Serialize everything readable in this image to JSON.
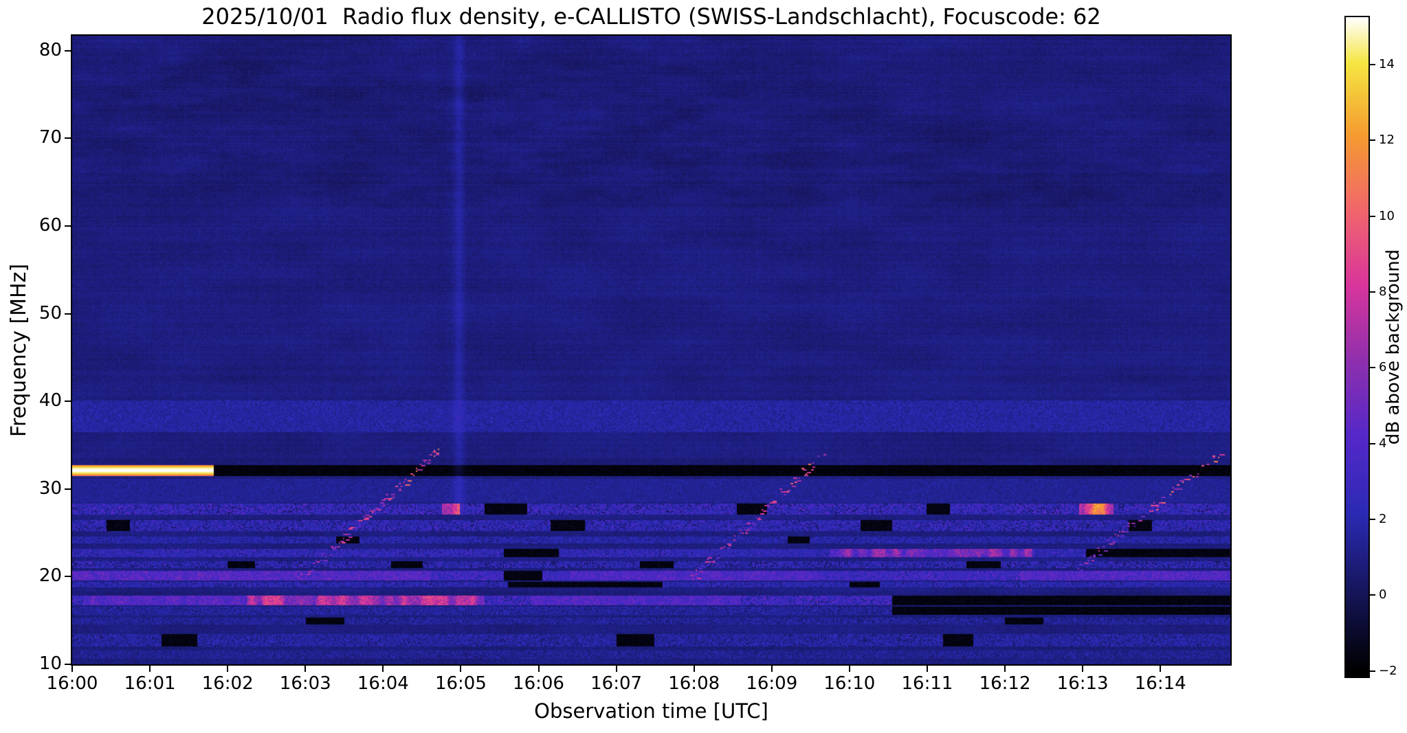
{
  "chart_data": {
    "type": "heatmap",
    "title": "2025/10/01  Radio flux density, e-CALLISTO (SWISS-Landschlacht), Focuscode: 62",
    "xlabel": "Observation time [UTC]",
    "ylabel": "Frequency [MHz]",
    "colorbar_label": "dB above background",
    "meta": {
      "date": "2025/10/01",
      "instrument": "e-CALLISTO",
      "station": "SWISS-Landschlacht",
      "focuscode": "62"
    },
    "x_ticks": [
      "16:00",
      "16:01",
      "16:02",
      "16:03",
      "16:04",
      "16:05",
      "16:06",
      "16:07",
      "16:08",
      "16:09",
      "16:10",
      "16:11",
      "16:12",
      "16:13",
      "16:14"
    ],
    "y_ticks": [
      10,
      20,
      30,
      40,
      50,
      60,
      70,
      80
    ],
    "colorbar_ticks": [
      {
        "v": -2,
        "label": "−2"
      },
      {
        "v": 0,
        "label": "0"
      },
      {
        "v": 2,
        "label": "2"
      },
      {
        "v": 4,
        "label": "4"
      },
      {
        "v": 6,
        "label": "6"
      },
      {
        "v": 8,
        "label": "8"
      },
      {
        "v": 10,
        "label": "10"
      },
      {
        "v": 12,
        "label": "12"
      },
      {
        "v": 14,
        "label": "14"
      }
    ],
    "x_range_minutes": [
      0,
      14.9
    ],
    "y_range_mhz": [
      10,
      81.7
    ],
    "value_range_db": [
      -2,
      15
    ],
    "background_level_db": 0.9,
    "colormap_stops": [
      {
        "p": 0.0,
        "c": "#000000"
      },
      {
        "p": 0.12,
        "c": "#15155a"
      },
      {
        "p": 0.24,
        "c": "#2a2ab4"
      },
      {
        "p": 0.36,
        "c": "#5528c8"
      },
      {
        "p": 0.47,
        "c": "#8c2fae"
      },
      {
        "p": 0.59,
        "c": "#d8359b"
      },
      {
        "p": 0.7,
        "c": "#f0646e"
      },
      {
        "p": 0.82,
        "c": "#f59b30"
      },
      {
        "p": 0.93,
        "c": "#f5e642"
      },
      {
        "p": 1.0,
        "c": "#ffffff"
      }
    ],
    "features": {
      "calibration_band": {
        "f": [
          31.45,
          32.75
        ],
        "f_center": 32.1,
        "bright_until_min": 1.82,
        "bright_db": 15.2,
        "dark_db": -1.9
      },
      "rfi_bands": [
        {
          "f": [
            27.0,
            28.3
          ],
          "base": 2.4,
          "speckle": 2.4,
          "black": [
            [
              5.3,
              5.85
            ],
            [
              8.55,
              8.95
            ],
            [
              11.0,
              11.3
            ]
          ],
          "bright": [
            [
              12.95,
              13.4,
              10
            ],
            [
              4.75,
              4.98,
              11
            ]
          ]
        },
        {
          "f": [
            25.2,
            26.5
          ],
          "base": 2.1,
          "speckle": 2.0,
          "black": [
            [
              0.45,
              0.75
            ],
            [
              6.15,
              6.6
            ],
            [
              10.15,
              10.55
            ],
            [
              13.6,
              13.9
            ]
          ],
          "bright": []
        },
        {
          "f": [
            23.7,
            24.5
          ],
          "base": 1.8,
          "speckle": 1.2,
          "black": [
            [
              3.4,
              3.7
            ],
            [
              9.2,
              9.5
            ]
          ],
          "bright": []
        },
        {
          "f": [
            22.2,
            23.2
          ],
          "base": 2.3,
          "speckle": 1.7,
          "black": [
            [
              5.55,
              6.25
            ],
            [
              13.05,
              14.9
            ]
          ],
          "bright": [
            [
              9.75,
              12.35,
              4.5
            ]
          ]
        },
        {
          "f": [
            21.0,
            21.8
          ],
          "base": 1.9,
          "speckle": 2.1,
          "black": [
            [
              2.0,
              2.35
            ],
            [
              4.1,
              4.5
            ],
            [
              7.3,
              7.75
            ],
            [
              11.5,
              11.95
            ]
          ],
          "bright": []
        },
        {
          "f": [
            19.5,
            20.6
          ],
          "base": 3.0,
          "speckle": 1.9,
          "black": [
            [
              5.55,
              6.05
            ]
          ],
          "bright": [
            [
              0.0,
              4.6,
              1.6
            ],
            [
              6.4,
              9.6,
              1.1
            ],
            [
              12.2,
              14.9,
              1.3
            ]
          ]
        },
        {
          "f": [
            18.7,
            19.4
          ],
          "base": 2.0,
          "speckle": 1.5,
          "black": [
            [
              5.6,
              7.6
            ],
            [
              10.0,
              10.4
            ]
          ],
          "bright": []
        },
        {
          "f": [
            16.7,
            17.8
          ],
          "base": 2.8,
          "speckle": 2.6,
          "black": [
            [
              10.55,
              14.9
            ]
          ],
          "bright": [
            [
              2.25,
              5.3,
              6.0
            ],
            [
              0.15,
              2.25,
              1.8
            ],
            [
              5.9,
              8.6,
              1.4
            ]
          ]
        },
        {
          "f": [
            15.7,
            16.6
          ],
          "base": 1.5,
          "speckle": 1.1,
          "black": [
            [
              10.55,
              14.9
            ]
          ],
          "bright": []
        },
        {
          "f": [
            14.5,
            15.4
          ],
          "base": 1.4,
          "speckle": 1.2,
          "black": [
            [
              3.0,
              3.5
            ],
            [
              12.0,
              12.5
            ]
          ],
          "bright": []
        },
        {
          "f": [
            12.1,
            13.4
          ],
          "base": 1.6,
          "speckle": 1.4,
          "black": [
            [
              1.15,
              1.6
            ],
            [
              7.0,
              7.5
            ],
            [
              11.2,
              11.6
            ]
          ],
          "bright": []
        },
        {
          "f": [
            10.6,
            11.5
          ],
          "base": 1.3,
          "speckle": 0.9,
          "black": [],
          "bright": []
        },
        {
          "f": [
            36.5,
            40.0
          ],
          "base": 1.7,
          "speckle": 0.8,
          "black": [],
          "bright": []
        },
        {
          "f": [
            28.5,
            31.2
          ],
          "base": 1.4,
          "speckle": 0.6,
          "black": [],
          "bright": []
        }
      ],
      "drifting_bursts": [
        {
          "t": [
            2.9,
            4.72
          ],
          "f": [
            19.5,
            34.3
          ]
        },
        {
          "t": [
            7.95,
            9.7
          ],
          "f": [
            19.5,
            34.3
          ]
        },
        {
          "t": [
            12.95,
            14.8
          ],
          "f": [
            21.0,
            34.2
          ]
        }
      ],
      "vertical_enhancement": {
        "t": 4.97,
        "sigma": 0.07,
        "amp": 0.9,
        "f_min": 27
      }
    }
  }
}
